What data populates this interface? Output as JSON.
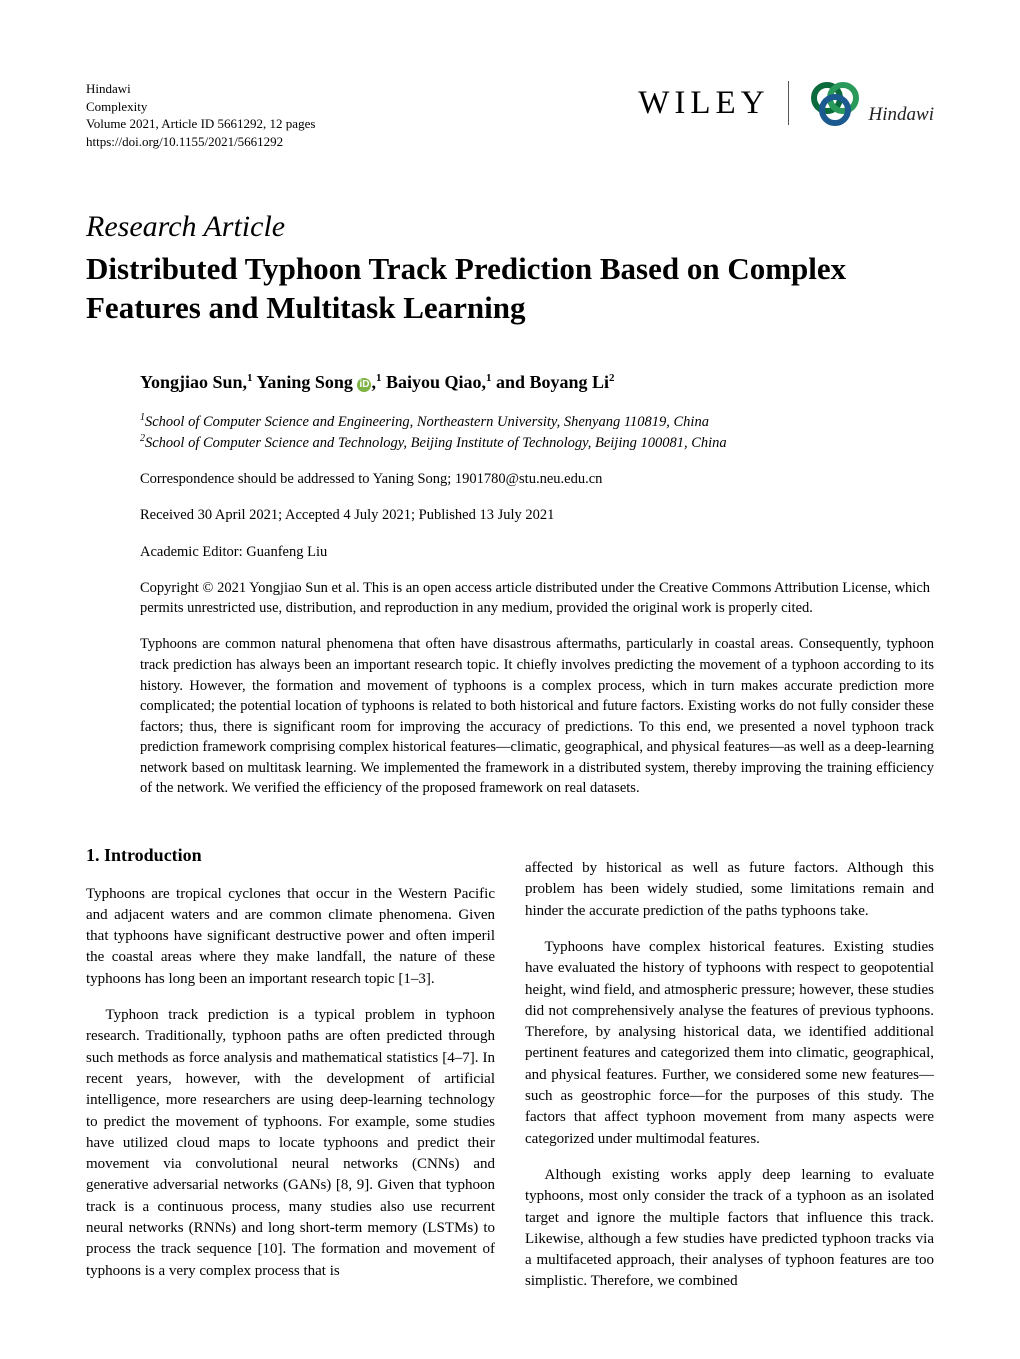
{
  "publisher": {
    "name": "Hindawi",
    "journal": "Complexity",
    "volume_line": "Volume 2021, Article ID 5661292, 12 pages",
    "doi_line": "https://doi.org/10.1155/2021/5661292"
  },
  "logos": {
    "wiley": "WILEY",
    "hindawi": "Hindawi",
    "ring_colors": [
      "#0a6b3d",
      "#2a9a5a",
      "#1a5a8f"
    ]
  },
  "article_type": "Research Article",
  "title": "Distributed Typhoon Track Prediction Based on Complex Features and Multitask Learning",
  "authors_html": "Yongjiao Sun,<sup>1</sup> Yaning Song <span class='orcid'>iD</span>,<sup>1</sup> Baiyou Qiao,<sup>1</sup> and Boyang Li<sup>2</sup>",
  "affiliations": [
    "<sup>1</sup>School of Computer Science and Engineering, Northeastern University, Shenyang 110819, China",
    "<sup>2</sup>School of Computer Science and Technology, Beijing Institute of Technology, Beijing 100081, China"
  ],
  "correspondence": "Correspondence should be addressed to Yaning Song; 1901780@stu.neu.edu.cn",
  "dates": "Received 30 April 2021; Accepted 4 July 2021; Published 13 July 2021",
  "editor": "Academic Editor: Guanfeng Liu",
  "copyright": "Copyright © 2021 Yongjiao Sun et al. This is an open access article distributed under the Creative Commons Attribution License, which permits unrestricted use, distribution, and reproduction in any medium, provided the original work is properly cited.",
  "abstract": "Typhoons are common natural phenomena that often have disastrous aftermaths, particularly in coastal areas. Consequently, typhoon track prediction has always been an important research topic. It chiefly involves predicting the movement of a typhoon according to its history. However, the formation and movement of typhoons is a complex process, which in turn makes accurate prediction more complicated; the potential location of typhoons is related to both historical and future factors. Existing works do not fully consider these factors; thus, there is significant room for improving the accuracy of predictions. To this end, we presented a novel typhoon track prediction framework comprising complex historical features—climatic, geographical, and physical features—as well as a deep-learning network based on multitask learning. We implemented the framework in a distributed system, thereby improving the training efficiency of the network. We verified the efficiency of the proposed framework on real datasets.",
  "section_heading": "1. Introduction",
  "left_paragraphs": [
    "Typhoons are tropical cyclones that occur in the Western Pacific and adjacent waters and are common climate phenomena. Given that typhoons have significant destructive power and often imperil the coastal areas where they make landfall, the nature of these typhoons has long been an important research topic [1–3].",
    "Typhoon track prediction is a typical problem in typhoon research. Traditionally, typhoon paths are often predicted through such methods as force analysis and mathematical statistics [4–7]. In recent years, however, with the development of artificial intelligence, more researchers are using deep-learning technology to predict the movement of typhoons. For example, some studies have utilized cloud maps to locate typhoons and predict their movement via convolutional neural networks (CNNs) and generative adversarial networks (GANs) [8, 9]. Given that typhoon track is a continuous process, many studies also use recurrent neural networks (RNNs) and long short-term memory (LSTMs) to process the track sequence [10]. The formation and movement of typhoons is a very complex process that is"
  ],
  "right_paragraphs": [
    "affected by historical as well as future factors. Although this problem has been widely studied, some limitations remain and hinder the accurate prediction of the paths typhoons take.",
    "Typhoons have complex historical features. Existing studies have evaluated the history of typhoons with respect to geopotential height, wind field, and atmospheric pressure; however, these studies did not comprehensively analyse the features of previous typhoons. Therefore, by analysing historical data, we identified additional pertinent features and categorized them into climatic, geographical, and physical features. Further, we considered some new features—such as geostrophic force—for the purposes of this study. The factors that affect typhoon movement from many aspects were categorized under multimodal features.",
    "Although existing works apply deep learning to evaluate typhoons, most only consider the track of a typhoon as an isolated target and ignore the multiple factors that influence this track. Likewise, although a few studies have predicted typhoon tracks via a multifaceted approach, their analyses of typhoon features are too simplistic. Therefore, we combined"
  ]
}
